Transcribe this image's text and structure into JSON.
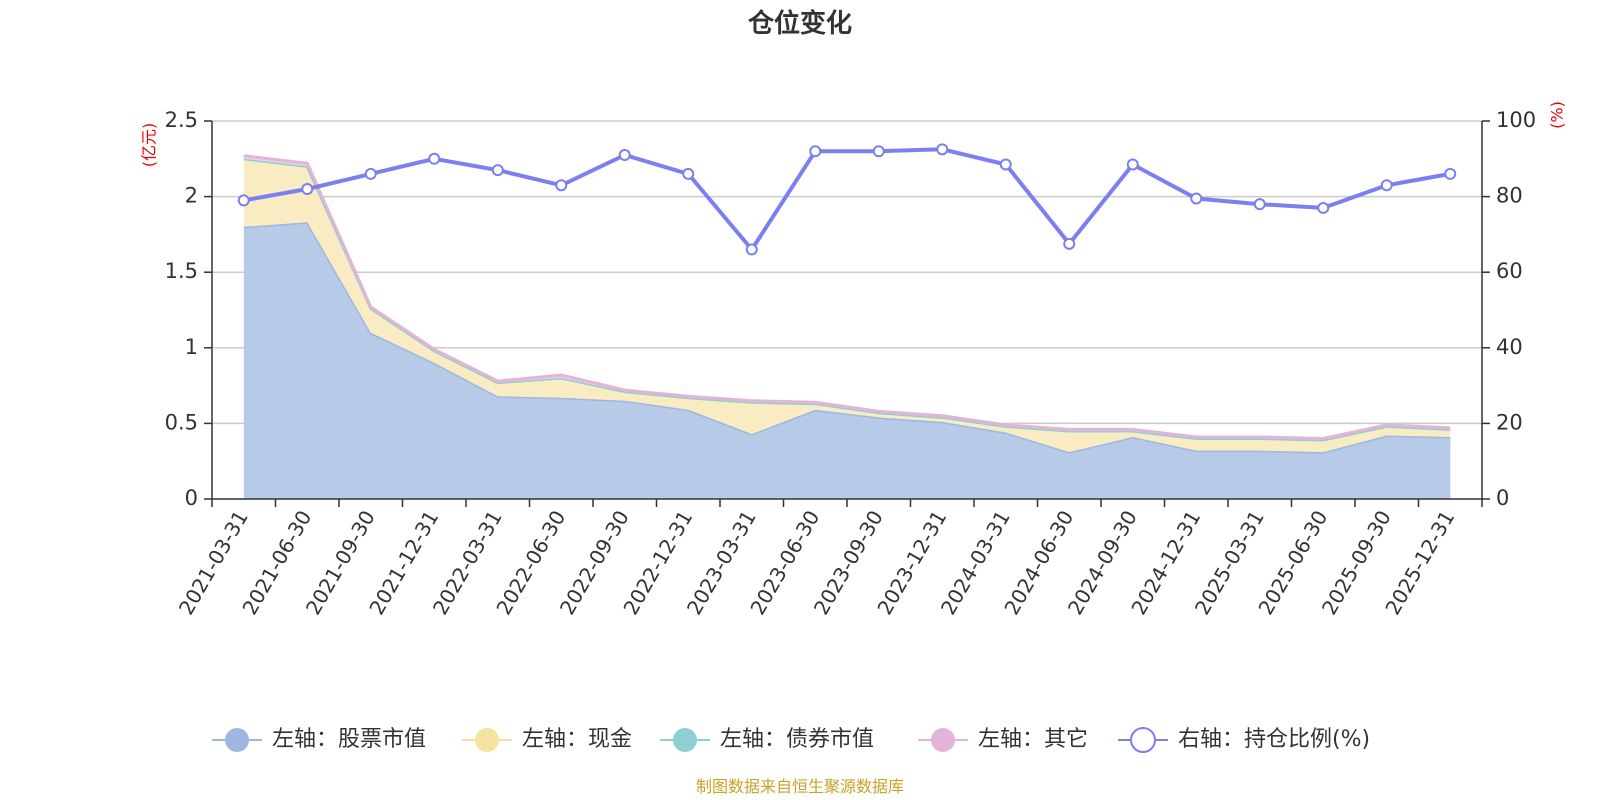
{
  "chart_data": {
    "type": "area",
    "title": "仓位变化",
    "left_unit": "(亿元)",
    "right_unit": "(%)",
    "categories": [
      "2021-03-31",
      "2021-06-30",
      "2021-09-30",
      "2021-12-31",
      "2022-03-31",
      "2022-06-30",
      "2022-09-30",
      "2022-12-31",
      "2023-03-31",
      "2023-06-30",
      "2023-09-30",
      "2023-12-31",
      "2024-03-31",
      "2024-06-30",
      "2024-09-30",
      "2024-12-31",
      "2025-03-31",
      "2025-06-30",
      "2025-09-30",
      "2025-12-31"
    ],
    "ylim_left": [
      0,
      2.5
    ],
    "yticks_left": [
      "0",
      "0.5",
      "1",
      "1.5",
      "2",
      "2.5"
    ],
    "ylim_right": [
      0,
      100
    ],
    "yticks_right": [
      "0",
      "20",
      "40",
      "60",
      "80",
      "100"
    ],
    "grid": true,
    "legend_position": "bottom",
    "series": [
      {
        "name": "左轴：股票市值",
        "axis": "left",
        "kind": "stacked-area",
        "color": "#9db7e0",
        "fill": "#b7cbe9",
        "values": [
          1.8,
          1.83,
          1.1,
          0.9,
          0.68,
          0.67,
          0.65,
          0.59,
          0.43,
          0.59,
          0.54,
          0.51,
          0.44,
          0.31,
          0.41,
          0.32,
          0.32,
          0.31,
          0.42,
          0.41
        ]
      },
      {
        "name": "左轴：现金",
        "axis": "left",
        "kind": "stacked-area",
        "color": "#f7e3a1",
        "fill": "#faecc2",
        "values": [
          0.45,
          0.37,
          0.16,
          0.08,
          0.09,
          0.13,
          0.06,
          0.08,
          0.21,
          0.04,
          0.03,
          0.03,
          0.04,
          0.14,
          0.04,
          0.08,
          0.08,
          0.08,
          0.06,
          0.05
        ]
      },
      {
        "name": "左轴：债券市值",
        "axis": "left",
        "kind": "stacked-area",
        "color": "#8ecfd4",
        "fill": "#bfe3e6",
        "values": [
          0,
          0,
          0,
          0,
          0,
          0,
          0,
          0,
          0,
          0,
          0,
          0,
          0,
          0,
          0,
          0,
          0,
          0,
          0,
          0
        ]
      },
      {
        "name": "左轴：其它",
        "axis": "left",
        "kind": "stacked-area",
        "color": "#e5b3d8",
        "fill": "#efcfe7",
        "values": [
          0.02,
          0.02,
          0.01,
          0.01,
          0.01,
          0.02,
          0.01,
          0.01,
          0.01,
          0.01,
          0.01,
          0.01,
          0.01,
          0.01,
          0.01,
          0.01,
          0.01,
          0.01,
          0.01,
          0.01
        ]
      },
      {
        "name": "右轴：持仓比例(%)",
        "axis": "right",
        "kind": "line",
        "color": "#7b7ff0",
        "values": [
          79,
          82,
          86,
          90,
          87,
          83,
          91,
          86,
          66,
          92,
          92,
          92.5,
          88.5,
          67.5,
          88.5,
          79.5,
          78,
          77,
          83,
          86
        ]
      }
    ]
  },
  "source_text": "制图数据来自恒生聚源数据库"
}
